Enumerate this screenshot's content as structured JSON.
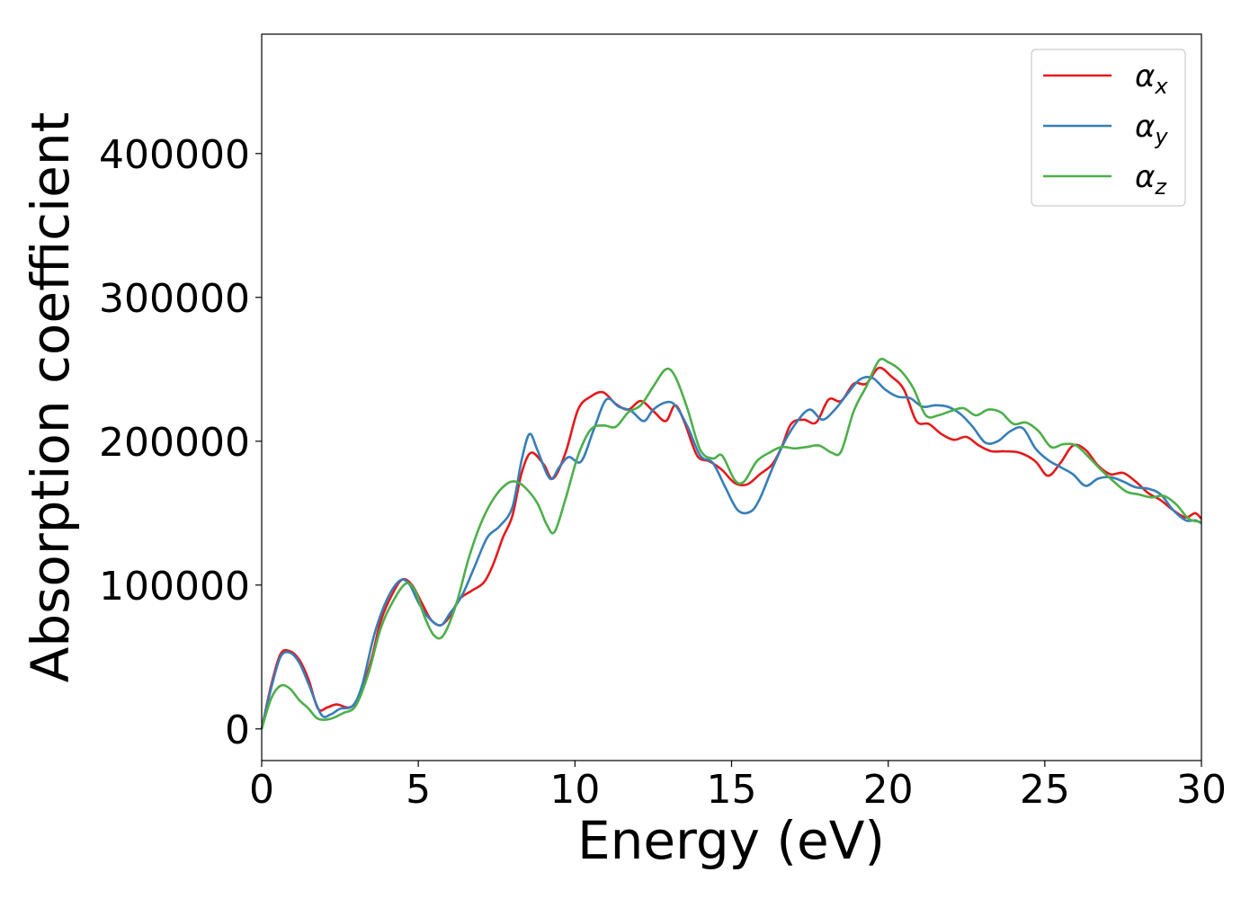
{
  "chart_data": {
    "type": "line",
    "xlabel": "Energy (eV)",
    "ylabel": "Absorption coefficient",
    "xlim": [
      0,
      30
    ],
    "ylim": [
      -22000,
      483000
    ],
    "xticks": [
      {
        "value": 0,
        "label": "0"
      },
      {
        "value": 5,
        "label": "5"
      },
      {
        "value": 10,
        "label": "10"
      },
      {
        "value": 15,
        "label": "15"
      },
      {
        "value": 20,
        "label": "20"
      },
      {
        "value": 25,
        "label": "25"
      },
      {
        "value": 30,
        "label": "30"
      }
    ],
    "yticks": [
      {
        "value": 0,
        "label": "0"
      },
      {
        "value": 100000,
        "label": "100000"
      },
      {
        "value": 200000,
        "label": "200000"
      },
      {
        "value": 300000,
        "label": "300000"
      },
      {
        "value": 400000,
        "label": "400000"
      }
    ],
    "grid": false,
    "legend_position": "top-right",
    "series": [
      {
        "name": "α",
        "sub": "x",
        "color": "#e41a1c",
        "points": [
          [
            0,
            0
          ],
          [
            0.3,
            30000
          ],
          [
            0.6,
            52000
          ],
          [
            0.9,
            54000
          ],
          [
            1.2,
            48000
          ],
          [
            1.5,
            34000
          ],
          [
            1.8,
            14000
          ],
          [
            2.1,
            15000
          ],
          [
            2.4,
            17000
          ],
          [
            2.8,
            15000
          ],
          [
            3.1,
            22000
          ],
          [
            3.5,
            48000
          ],
          [
            3.8,
            75000
          ],
          [
            4.2,
            95000
          ],
          [
            4.5,
            104000
          ],
          [
            4.8,
            100000
          ],
          [
            5.1,
            88000
          ],
          [
            5.4,
            76000
          ],
          [
            5.7,
            72000
          ],
          [
            6.0,
            78000
          ],
          [
            6.3,
            90000
          ],
          [
            6.7,
            96000
          ],
          [
            7.1,
            102000
          ],
          [
            7.4,
            115000
          ],
          [
            7.7,
            133000
          ],
          [
            8.0,
            148000
          ],
          [
            8.3,
            178000
          ],
          [
            8.6,
            192000
          ],
          [
            9.0,
            184000
          ],
          [
            9.3,
            174000
          ],
          [
            9.7,
            192000
          ],
          [
            10.1,
            222000
          ],
          [
            10.5,
            231000
          ],
          [
            10.9,
            234000
          ],
          [
            11.3,
            226000
          ],
          [
            11.7,
            222000
          ],
          [
            12.1,
            228000
          ],
          [
            12.5,
            221000
          ],
          [
            12.9,
            214000
          ],
          [
            13.2,
            225000
          ],
          [
            13.5,
            213000
          ],
          [
            13.9,
            190000
          ],
          [
            14.3,
            186000
          ],
          [
            14.7,
            180000
          ],
          [
            15.1,
            171000
          ],
          [
            15.5,
            170000
          ],
          [
            15.9,
            177000
          ],
          [
            16.3,
            184000
          ],
          [
            16.6,
            196000
          ],
          [
            16.9,
            212000
          ],
          [
            17.3,
            215000
          ],
          [
            17.7,
            213000
          ],
          [
            18.1,
            229000
          ],
          [
            18.5,
            228000
          ],
          [
            18.9,
            240000
          ],
          [
            19.3,
            240000
          ],
          [
            19.7,
            251000
          ],
          [
            20.1,
            245000
          ],
          [
            20.5,
            236000
          ],
          [
            20.9,
            214000
          ],
          [
            21.3,
            212000
          ],
          [
            21.7,
            205000
          ],
          [
            22.1,
            201000
          ],
          [
            22.5,
            203000
          ],
          [
            22.9,
            197000
          ],
          [
            23.3,
            193000
          ],
          [
            23.7,
            193000
          ],
          [
            24.2,
            192000
          ],
          [
            24.7,
            186000
          ],
          [
            25.1,
            176000
          ],
          [
            25.5,
            185000
          ],
          [
            25.9,
            197000
          ],
          [
            26.3,
            194000
          ],
          [
            26.7,
            183000
          ],
          [
            27.1,
            177000
          ],
          [
            27.5,
            178000
          ],
          [
            27.9,
            172000
          ],
          [
            28.3,
            164000
          ],
          [
            28.7,
            159000
          ],
          [
            29.1,
            152000
          ],
          [
            29.5,
            147000
          ],
          [
            29.8,
            150000
          ],
          [
            30,
            146000
          ]
        ]
      },
      {
        "name": "α",
        "sub": "y",
        "color": "#377eb8",
        "points": [
          [
            0,
            0
          ],
          [
            0.3,
            28000
          ],
          [
            0.6,
            50000
          ],
          [
            0.9,
            53000
          ],
          [
            1.2,
            46000
          ],
          [
            1.5,
            31000
          ],
          [
            1.9,
            10000
          ],
          [
            2.2,
            10000
          ],
          [
            2.5,
            14000
          ],
          [
            2.9,
            16000
          ],
          [
            3.2,
            30000
          ],
          [
            3.6,
            66000
          ],
          [
            4.0,
            90000
          ],
          [
            4.4,
            103000
          ],
          [
            4.7,
            101000
          ],
          [
            5.0,
            88000
          ],
          [
            5.3,
            78000
          ],
          [
            5.7,
            72000
          ],
          [
            6.0,
            80000
          ],
          [
            6.4,
            93000
          ],
          [
            6.8,
            113000
          ],
          [
            7.2,
            133000
          ],
          [
            7.6,
            141000
          ],
          [
            8.0,
            154000
          ],
          [
            8.3,
            187000
          ],
          [
            8.55,
            205000
          ],
          [
            8.8,
            194000
          ],
          [
            9.2,
            174000
          ],
          [
            9.5,
            182000
          ],
          [
            9.8,
            189000
          ],
          [
            10.2,
            186000
          ],
          [
            10.6,
            208000
          ],
          [
            11.0,
            229000
          ],
          [
            11.4,
            224000
          ],
          [
            11.8,
            221000
          ],
          [
            12.2,
            214000
          ],
          [
            12.5,
            222000
          ],
          [
            12.9,
            227000
          ],
          [
            13.2,
            225000
          ],
          [
            13.6,
            210000
          ],
          [
            14.0,
            190000
          ],
          [
            14.4,
            185000
          ],
          [
            14.8,
            168000
          ],
          [
            15.2,
            152000
          ],
          [
            15.6,
            151000
          ],
          [
            15.9,
            160000
          ],
          [
            16.3,
            181000
          ],
          [
            16.7,
            200000
          ],
          [
            17.1,
            214000
          ],
          [
            17.5,
            222000
          ],
          [
            17.9,
            215000
          ],
          [
            18.3,
            222000
          ],
          [
            18.7,
            233000
          ],
          [
            19.1,
            243000
          ],
          [
            19.5,
            244000
          ],
          [
            19.9,
            236000
          ],
          [
            20.3,
            231000
          ],
          [
            20.7,
            230000
          ],
          [
            21.1,
            224000
          ],
          [
            21.5,
            225000
          ],
          [
            21.9,
            224000
          ],
          [
            22.3,
            219000
          ],
          [
            22.7,
            210000
          ],
          [
            23.1,
            199000
          ],
          [
            23.5,
            200000
          ],
          [
            23.9,
            207000
          ],
          [
            24.3,
            209000
          ],
          [
            24.7,
            195000
          ],
          [
            25.1,
            187000
          ],
          [
            25.5,
            182000
          ],
          [
            25.9,
            177000
          ],
          [
            26.3,
            169000
          ],
          [
            26.7,
            174000
          ],
          [
            27.1,
            175000
          ],
          [
            27.5,
            172000
          ],
          [
            27.9,
            168000
          ],
          [
            28.3,
            167000
          ],
          [
            28.7,
            163000
          ],
          [
            29.1,
            152000
          ],
          [
            29.5,
            145000
          ],
          [
            29.8,
            145000
          ],
          [
            30,
            143000
          ]
        ]
      },
      {
        "name": "α",
        "sub": "z",
        "color": "#4daf4a",
        "points": [
          [
            0,
            0
          ],
          [
            0.3,
            21000
          ],
          [
            0.6,
            30000
          ],
          [
            0.9,
            28000
          ],
          [
            1.2,
            20000
          ],
          [
            1.5,
            14000
          ],
          [
            1.8,
            7000
          ],
          [
            2.2,
            7000
          ],
          [
            2.6,
            11000
          ],
          [
            3.0,
            16000
          ],
          [
            3.4,
            38000
          ],
          [
            3.8,
            70000
          ],
          [
            4.2,
            89000
          ],
          [
            4.6,
            101000
          ],
          [
            4.9,
            96000
          ],
          [
            5.2,
            78000
          ],
          [
            5.5,
            65000
          ],
          [
            5.8,
            65000
          ],
          [
            6.2,
            86000
          ],
          [
            6.6,
            118000
          ],
          [
            7.0,
            143000
          ],
          [
            7.4,
            160000
          ],
          [
            7.8,
            170000
          ],
          [
            8.1,
            172000
          ],
          [
            8.4,
            168000
          ],
          [
            8.8,
            157000
          ],
          [
            9.1,
            142000
          ],
          [
            9.35,
            137000
          ],
          [
            9.7,
            160000
          ],
          [
            10.1,
            190000
          ],
          [
            10.5,
            208000
          ],
          [
            10.9,
            211000
          ],
          [
            11.3,
            210000
          ],
          [
            11.7,
            220000
          ],
          [
            12.1,
            225000
          ],
          [
            12.5,
            238000
          ],
          [
            12.9,
            250000
          ],
          [
            13.2,
            245000
          ],
          [
            13.6,
            222000
          ],
          [
            14.0,
            194000
          ],
          [
            14.4,
            188000
          ],
          [
            14.7,
            190000
          ],
          [
            15.1,
            173000
          ],
          [
            15.4,
            172000
          ],
          [
            15.8,
            186000
          ],
          [
            16.2,
            192000
          ],
          [
            16.6,
            196000
          ],
          [
            17.0,
            195000
          ],
          [
            17.4,
            196000
          ],
          [
            17.8,
            197000
          ],
          [
            18.2,
            192000
          ],
          [
            18.5,
            193000
          ],
          [
            18.9,
            221000
          ],
          [
            19.3,
            238000
          ],
          [
            19.7,
            256000
          ],
          [
            20.0,
            255000
          ],
          [
            20.4,
            249000
          ],
          [
            20.8,
            237000
          ],
          [
            21.2,
            218000
          ],
          [
            21.6,
            218000
          ],
          [
            22.0,
            221000
          ],
          [
            22.4,
            223000
          ],
          [
            22.8,
            218000
          ],
          [
            23.2,
            222000
          ],
          [
            23.6,
            220000
          ],
          [
            24.0,
            212000
          ],
          [
            24.4,
            213000
          ],
          [
            24.8,
            207000
          ],
          [
            25.2,
            196000
          ],
          [
            25.6,
            198000
          ],
          [
            26.0,
            197000
          ],
          [
            26.4,
            189000
          ],
          [
            26.8,
            180000
          ],
          [
            27.2,
            172000
          ],
          [
            27.6,
            165000
          ],
          [
            28.0,
            163000
          ],
          [
            28.4,
            161000
          ],
          [
            28.8,
            162000
          ],
          [
            29.2,
            156000
          ],
          [
            29.6,
            146000
          ],
          [
            30,
            144000
          ]
        ]
      }
    ]
  }
}
